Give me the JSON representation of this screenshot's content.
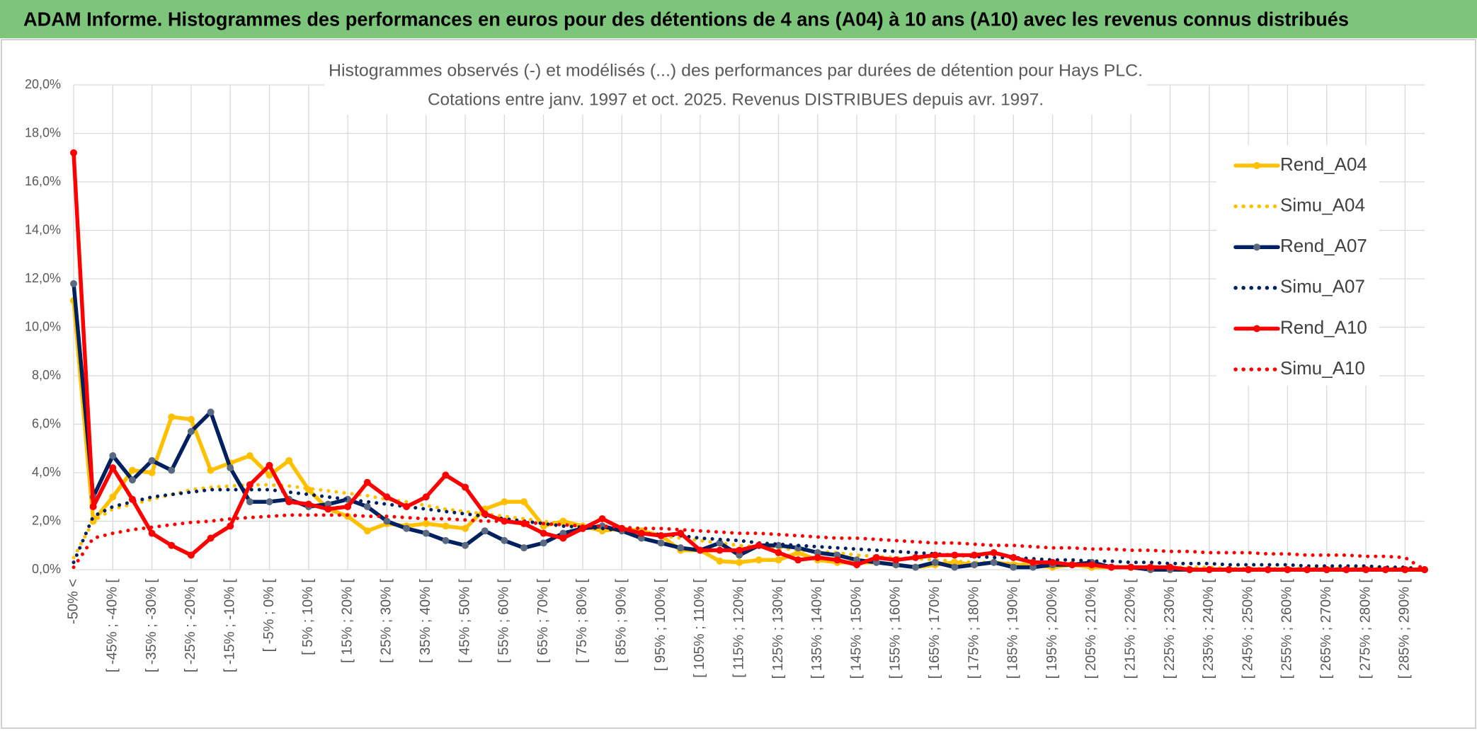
{
  "header": {
    "title": "ADAM Informe. Histogrammes des performances en euros pour des détentions de 4 ans (A04) à 10 ans (A10) avec les revenus connus distribués"
  },
  "chart_data": {
    "type": "line",
    "title": [
      "Histogrammes observés (-) et modélisés (...) des performances par durées de détention pour Hays PLC.",
      "Cotations entre janv. 1997 et oct. 2025. Revenus DISTRIBUES depuis avr. 1997."
    ],
    "categories": [
      "-50% <",
      null,
      "[ -45% ; -40% [",
      null,
      "[ -35% ; -30% [",
      null,
      "[ -25% ; -20% [",
      null,
      "[ -15% ; -10% [",
      null,
      "[ -5% ; 0% [",
      null,
      "[ 5% ; 10% [",
      null,
      "[ 15% ; 20% [",
      null,
      "[ 25% ; 30% [",
      null,
      "[ 35% ; 40% [",
      null,
      "[ 45% ; 50% [",
      null,
      "[ 55% ; 60% [",
      null,
      "[ 65% ; 70% [",
      null,
      "[ 75% ; 80% [",
      null,
      "[ 85% ; 90% [",
      null,
      "[ 95% ; 100% [",
      null,
      "[ 105% ; 110% [",
      null,
      "[ 115% ; 120% [",
      null,
      "[ 125% ; 130% [",
      null,
      "[ 135% ; 140% [",
      null,
      "[ 145% ; 150% [",
      null,
      "[ 155% ; 160% [",
      null,
      "[ 165% ; 170% [",
      null,
      "[ 175% ; 180% [",
      null,
      "[ 185% ; 190% [",
      null,
      "[ 195% ; 200% [",
      null,
      "[ 205% ; 210% [",
      null,
      "[ 215% ; 220% [",
      null,
      "[ 225% ; 230% [",
      null,
      "[ 235% ; 240% [",
      null,
      "[ 245% ; 250% [",
      null,
      "[ 255% ; 260% [",
      null,
      "[ 265% ; 270% [",
      null,
      "[ 275% ; 280% [",
      null,
      "[ 285% ; 290% [",
      null
    ],
    "series": [
      {
        "name": "Rend_A04",
        "color": "#ffc000",
        "line_style": "solid",
        "markers": true,
        "values": [
          11.1,
          2.0,
          3.0,
          4.1,
          4.0,
          6.3,
          6.2,
          4.1,
          4.4,
          4.7,
          3.9,
          4.5,
          3.3,
          2.5,
          2.2,
          1.6,
          1.9,
          1.8,
          1.9,
          1.8,
          1.7,
          2.5,
          2.8,
          2.8,
          1.8,
          2.0,
          1.8,
          1.6,
          1.7,
          1.6,
          1.4,
          0.8,
          0.8,
          0.35,
          0.3,
          0.4,
          0.4,
          0.7,
          0.4,
          0.3,
          0.3,
          0.3,
          0.2,
          0.1,
          0.2,
          0.3,
          0.2,
          0.3,
          0.2,
          0.2,
          0.1,
          0.2,
          0.1,
          0.1,
          0.1,
          0,
          0,
          0,
          0,
          0,
          0,
          0,
          0,
          0,
          0,
          0,
          0,
          0,
          0,
          0
        ]
      },
      {
        "name": "Simu_A04",
        "color": "#ffc000",
        "line_style": "dotted",
        "markers": false,
        "values": [
          0.5,
          2.0,
          2.5,
          2.7,
          2.9,
          3.1,
          3.3,
          3.4,
          3.45,
          3.5,
          3.5,
          3.45,
          3.35,
          3.25,
          3.15,
          3.05,
          2.9,
          2.8,
          2.65,
          2.5,
          2.4,
          2.3,
          2.2,
          2.1,
          2.0,
          1.9,
          1.8,
          1.7,
          1.6,
          1.5,
          1.4,
          1.3,
          1.2,
          1.1,
          1.0,
          0.95,
          0.9,
          0.8,
          0.75,
          0.7,
          0.6,
          0.55,
          0.5,
          0.45,
          0.4,
          0.35,
          0.3,
          0.3,
          0.25,
          0.2,
          0.2,
          0.2,
          0.15,
          0.15,
          0.1,
          0.1,
          0.1,
          0.1,
          0.1,
          0.05,
          0.05,
          0.05,
          0.05,
          0.05,
          0.05,
          0.05,
          0.05,
          0.05,
          0.05,
          0
        ]
      },
      {
        "name": "Rend_A07",
        "color": "#002060",
        "line_style": "solid",
        "markers": true,
        "values": [
          11.8,
          3.0,
          4.7,
          3.7,
          4.5,
          4.1,
          5.7,
          6.5,
          4.2,
          2.8,
          2.8,
          2.9,
          2.6,
          2.7,
          2.9,
          2.6,
          2.0,
          1.7,
          1.5,
          1.2,
          1.0,
          1.6,
          1.2,
          0.9,
          1.1,
          1.5,
          1.7,
          1.8,
          1.6,
          1.3,
          1.1,
          0.9,
          0.8,
          1.1,
          0.6,
          1.0,
          1.0,
          0.9,
          0.7,
          0.6,
          0.4,
          0.3,
          0.2,
          0.1,
          0.3,
          0.1,
          0.2,
          0.3,
          0.1,
          0.1,
          0.2,
          0.2,
          0.3,
          0.1,
          0.1,
          0,
          0,
          0,
          0,
          0,
          0,
          0,
          0,
          0,
          0,
          0,
          0,
          0,
          0,
          0
        ]
      },
      {
        "name": "Simu_A07",
        "color": "#002060",
        "line_style": "dotted",
        "markers": false,
        "values": [
          0.3,
          2.2,
          2.6,
          2.8,
          3.0,
          3.1,
          3.2,
          3.3,
          3.3,
          3.3,
          3.3,
          3.2,
          3.1,
          3.0,
          2.9,
          2.8,
          2.7,
          2.6,
          2.5,
          2.4,
          2.3,
          2.2,
          2.1,
          2.0,
          1.9,
          1.8,
          1.75,
          1.7,
          1.6,
          1.5,
          1.45,
          1.4,
          1.3,
          1.25,
          1.2,
          1.1,
          1.05,
          1.0,
          0.95,
          0.9,
          0.85,
          0.8,
          0.75,
          0.7,
          0.65,
          0.6,
          0.55,
          0.5,
          0.5,
          0.45,
          0.4,
          0.4,
          0.35,
          0.35,
          0.3,
          0.3,
          0.25,
          0.25,
          0.25,
          0.2,
          0.2,
          0.2,
          0.2,
          0.15,
          0.15,
          0.15,
          0.15,
          0.1,
          0.1,
          0
        ]
      },
      {
        "name": "Rend_A10",
        "color": "#ff0000",
        "line_style": "solid",
        "markers": true,
        "values": [
          17.2,
          2.6,
          4.2,
          2.9,
          1.5,
          1.0,
          0.6,
          1.3,
          1.8,
          3.5,
          4.3,
          2.8,
          2.7,
          2.5,
          2.6,
          3.6,
          3.0,
          2.6,
          3.0,
          3.9,
          3.4,
          2.3,
          2.0,
          1.9,
          1.5,
          1.3,
          1.7,
          2.1,
          1.7,
          1.5,
          1.4,
          1.5,
          0.8,
          0.8,
          0.8,
          1.0,
          0.7,
          0.4,
          0.5,
          0.4,
          0.2,
          0.5,
          0.4,
          0.5,
          0.6,
          0.6,
          0.6,
          0.7,
          0.5,
          0.3,
          0.3,
          0.2,
          0.2,
          0.1,
          0.1,
          0.1,
          0.1,
          0,
          0,
          0,
          0,
          0,
          0,
          0,
          0,
          0,
          0,
          0,
          0,
          0
        ]
      },
      {
        "name": "Simu_A10",
        "color": "#ff0000",
        "line_style": "dotted",
        "markers": false,
        "values": [
          0.1,
          1.3,
          1.5,
          1.65,
          1.75,
          1.85,
          1.95,
          2.0,
          2.1,
          2.15,
          2.2,
          2.25,
          2.25,
          2.25,
          2.25,
          2.2,
          2.2,
          2.15,
          2.1,
          2.1,
          2.05,
          2.0,
          2.0,
          1.95,
          1.9,
          1.85,
          1.8,
          1.8,
          1.75,
          1.7,
          1.7,
          1.65,
          1.6,
          1.55,
          1.5,
          1.5,
          1.45,
          1.4,
          1.35,
          1.3,
          1.3,
          1.25,
          1.2,
          1.15,
          1.1,
          1.1,
          1.05,
          1.0,
          1.0,
          0.95,
          0.9,
          0.9,
          0.85,
          0.85,
          0.8,
          0.8,
          0.75,
          0.75,
          0.7,
          0.7,
          0.7,
          0.65,
          0.65,
          0.6,
          0.6,
          0.6,
          0.55,
          0.55,
          0.5,
          0
        ]
      }
    ],
    "ylim": [
      0,
      20
    ],
    "yticks": [
      {
        "value": 0,
        "label": "0,0%"
      },
      {
        "value": 2,
        "label": "2,0%"
      },
      {
        "value": 4,
        "label": "4,0%"
      },
      {
        "value": 6,
        "label": "6,0%"
      },
      {
        "value": 8,
        "label": "8,0%"
      },
      {
        "value": 10,
        "label": "10,0%"
      },
      {
        "value": 12,
        "label": "12,0%"
      },
      {
        "value": 14,
        "label": "14,0%"
      },
      {
        "value": 16,
        "label": "16,0%"
      },
      {
        "value": 18,
        "label": "18,0%"
      },
      {
        "value": 20,
        "label": "20,0%"
      }
    ],
    "grid": true,
    "legend": "right"
  }
}
